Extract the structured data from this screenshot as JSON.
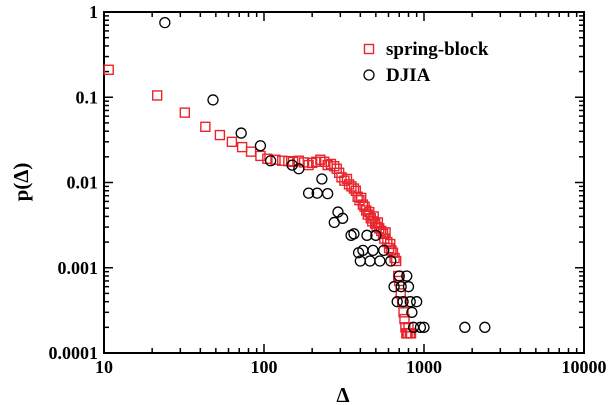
{
  "chart_data": {
    "type": "scatter",
    "xscale": "log",
    "yscale": "log",
    "xlim": [
      10,
      10000
    ],
    "ylim": [
      0.0001,
      1
    ],
    "xlabel": "Δ",
    "ylabel": "p(Δ)",
    "x_ticks": [
      10,
      100,
      1000,
      10000
    ],
    "x_tick_labels": [
      "10",
      "100",
      "1000",
      "10000"
    ],
    "y_ticks": [
      0.0001,
      0.001,
      0.01,
      0.1,
      1
    ],
    "y_tick_labels": [
      "0.0001",
      "0.001",
      "0.01",
      "0.1",
      "1"
    ],
    "grid": false,
    "legend_position": "top-right",
    "series": [
      {
        "name": "spring-block",
        "marker": "square",
        "color": "#e8242c",
        "points": [
          [
            10.7,
            0.21
          ],
          [
            21.5,
            0.105
          ],
          [
            32,
            0.066
          ],
          [
            43,
            0.045
          ],
          [
            53,
            0.036
          ],
          [
            63,
            0.03
          ],
          [
            73,
            0.026
          ],
          [
            83,
            0.023
          ],
          [
            95,
            0.0205
          ],
          [
            105,
            0.019
          ],
          [
            118,
            0.0185
          ],
          [
            130,
            0.018
          ],
          [
            142,
            0.0178
          ],
          [
            152,
            0.0175
          ],
          [
            165,
            0.018
          ],
          [
            178,
            0.0172
          ],
          [
            190,
            0.016
          ],
          [
            200,
            0.017
          ],
          [
            212,
            0.0175
          ],
          [
            225,
            0.0185
          ],
          [
            238,
            0.0175
          ],
          [
            250,
            0.016
          ],
          [
            262,
            0.0165
          ],
          [
            275,
            0.0155
          ],
          [
            285,
            0.0145
          ],
          [
            295,
            0.013
          ],
          [
            305,
            0.0115
          ],
          [
            318,
            0.0105
          ],
          [
            330,
            0.011
          ],
          [
            340,
            0.0095
          ],
          [
            352,
            0.009
          ],
          [
            365,
            0.0085
          ],
          [
            375,
            0.008
          ],
          [
            385,
            0.0068
          ],
          [
            395,
            0.0062
          ],
          [
            405,
            0.0066
          ],
          [
            415,
            0.0055
          ],
          [
            425,
            0.0052
          ],
          [
            435,
            0.0047
          ],
          [
            445,
            0.0042
          ],
          [
            455,
            0.0045
          ],
          [
            465,
            0.0038
          ],
          [
            475,
            0.0035
          ],
          [
            485,
            0.004
          ],
          [
            495,
            0.0033
          ],
          [
            505,
            0.003
          ],
          [
            515,
            0.0034
          ],
          [
            525,
            0.0029
          ],
          [
            540,
            0.0027
          ],
          [
            555,
            0.0025
          ],
          [
            565,
            0.0022
          ],
          [
            575,
            0.0026
          ],
          [
            590,
            0.002
          ],
          [
            605,
            0.0017
          ],
          [
            615,
            0.0019
          ],
          [
            625,
            0.0016
          ],
          [
            640,
            0.0015
          ],
          [
            655,
            0.0013
          ],
          [
            670,
            0.0012
          ],
          [
            690,
            0.0008
          ],
          [
            700,
            0.0007
          ],
          [
            715,
            0.0005
          ],
          [
            730,
            0.0004
          ],
          [
            745,
            0.0003
          ],
          [
            755,
            0.00025
          ],
          [
            765,
            0.0002
          ],
          [
            775,
            0.00017
          ],
          [
            790,
            0.00017
          ],
          [
            800,
            0.0002
          ],
          [
            815,
            0.00017
          ],
          [
            830,
            0.00017
          ]
        ]
      },
      {
        "name": "DJIA",
        "marker": "circle",
        "color": "#000000",
        "points": [
          [
            24,
            0.75
          ],
          [
            48,
            0.093
          ],
          [
            72,
            0.038
          ],
          [
            95,
            0.027
          ],
          [
            110,
            0.018
          ],
          [
            150,
            0.016
          ],
          [
            165,
            0.0145
          ],
          [
            190,
            0.0075
          ],
          [
            215,
            0.0075
          ],
          [
            230,
            0.011
          ],
          [
            250,
            0.0074
          ],
          [
            275,
            0.0034
          ],
          [
            290,
            0.0045
          ],
          [
            310,
            0.0038
          ],
          [
            350,
            0.0024
          ],
          [
            365,
            0.0025
          ],
          [
            390,
            0.0015
          ],
          [
            400,
            0.0012
          ],
          [
            415,
            0.0016
          ],
          [
            440,
            0.0024
          ],
          [
            460,
            0.0012
          ],
          [
            480,
            0.0016
          ],
          [
            500,
            0.0024
          ],
          [
            530,
            0.0012
          ],
          [
            560,
            0.0016
          ],
          [
            620,
            0.0012
          ],
          [
            650,
            0.0006
          ],
          [
            680,
            0.0004
          ],
          [
            700,
            0.0008
          ],
          [
            720,
            0.0006
          ],
          [
            740,
            0.0004
          ],
          [
            780,
            0.0008
          ],
          [
            800,
            0.0006
          ],
          [
            820,
            0.0004
          ],
          [
            840,
            0.0003
          ],
          [
            860,
            0.0002
          ],
          [
            900,
            0.0004
          ],
          [
            950,
            0.0002
          ],
          [
            1000,
            0.0002
          ],
          [
            1800,
            0.0002
          ],
          [
            2400,
            0.0002
          ]
        ]
      }
    ]
  }
}
